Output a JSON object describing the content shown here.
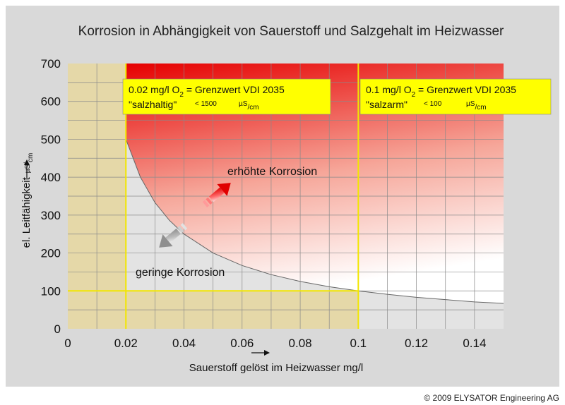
{
  "chart_data": {
    "type": "area",
    "title": "Korrosion in Abhängigkeit von Sauerstoff und Salzgehalt im Heizwasser",
    "xlabel": "Sauerstoff gelöst im Heizwasser mg/l",
    "ylabel_main": "el. Leitfähigkeit",
    "ylabel_unit_mu": "µS",
    "ylabel_unit_den": "cm",
    "xlim": [
      0,
      0.15
    ],
    "ylim": [
      0,
      700
    ],
    "x_ticks": [
      0,
      0.02,
      0.04,
      0.06,
      0.08,
      0.1,
      0.12,
      0.14
    ],
    "x_tick_labels": [
      "0",
      "0.02",
      "0.04",
      "0.06",
      "0.08",
      "0.1",
      "0.12",
      "0.14"
    ],
    "y_ticks": [
      0,
      100,
      200,
      300,
      400,
      500,
      600,
      700
    ],
    "y_tick_labels": [
      "0",
      "100",
      "200",
      "300",
      "400",
      "500",
      "600",
      "700"
    ],
    "grid": true,
    "boundary_curve": {
      "x": [
        0.02,
        0.025,
        0.03,
        0.035,
        0.04,
        0.05,
        0.06,
        0.07,
        0.08,
        0.09,
        0.1,
        0.11,
        0.12,
        0.13,
        0.14,
        0.15
      ],
      "y": [
        500,
        400,
        333,
        286,
        250,
        200,
        167,
        143,
        125,
        111,
        100,
        91,
        83,
        77,
        71,
        67
      ]
    },
    "highlight_regions": [
      {
        "x": [
          0,
          0.02
        ],
        "y": [
          0,
          700
        ]
      },
      {
        "x": [
          0,
          0.1
        ],
        "y": [
          0,
          100
        ]
      }
    ],
    "limit_lines": [
      {
        "x": 0.02,
        "ymax": 700
      },
      {
        "x": 0.1,
        "ymax": 700
      },
      {
        "y": 100,
        "xmax": 0.1
      }
    ],
    "annotations": {
      "high": "erhöhte Korrosion",
      "low": "geringe Korrosion"
    },
    "boxes": [
      {
        "line1_prefix": "0.02 mg/l O",
        "line1_sub": "2",
        "line1_suffix": " = Grenzwert VDI 2035",
        "line2_quote": "\"salzhaltig\"",
        "line2_value": "< 1500",
        "unit_mu": "µS",
        "unit_den": "/cm"
      },
      {
        "line1_prefix": "0.1 mg/l O",
        "line1_sub": "2",
        "line1_suffix": " = Grenzwert VDI 2035",
        "line2_quote": "\"salzarm\"",
        "line2_value": "< 100",
        "unit_mu": "µS",
        "unit_den": "/cm"
      }
    ],
    "colors": {
      "background": "#d9d9d9",
      "low_area": "#e3e3e3",
      "high_red": "#e60000",
      "highlight": "#e5d8a8",
      "limit_line": "#f2e600",
      "box_fill": "#ffff00",
      "curve": "#666666"
    }
  },
  "copyright": "© 2009 ELYSATOR Engineering AG"
}
